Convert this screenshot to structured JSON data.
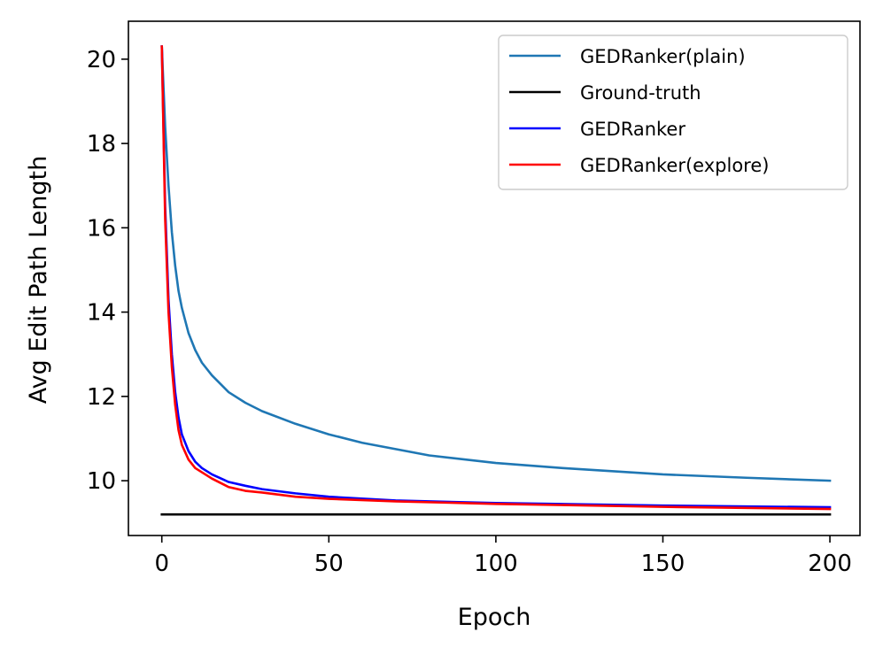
{
  "chart_data": {
    "type": "line",
    "xlabel": "Epoch",
    "ylabel": "Avg Edit Path Length",
    "xlim": [
      -10,
      209
    ],
    "ylim": [
      8.7,
      20.9
    ],
    "xticks": [
      0,
      50,
      100,
      150,
      200
    ],
    "yticks": [
      10,
      12,
      14,
      16,
      18,
      20
    ],
    "grid": false,
    "legend_position": "top-right",
    "series": [
      {
        "name": "GEDRanker(plain)",
        "color": "#1f77b4",
        "x": [
          0,
          1,
          2,
          3,
          4,
          5,
          6,
          8,
          10,
          12,
          15,
          20,
          25,
          30,
          40,
          50,
          60,
          70,
          80,
          100,
          120,
          150,
          175,
          200
        ],
        "y": [
          20.3,
          18.4,
          17.0,
          15.9,
          15.1,
          14.5,
          14.1,
          13.5,
          13.1,
          12.8,
          12.5,
          12.1,
          11.85,
          11.65,
          11.35,
          11.1,
          10.9,
          10.75,
          10.6,
          10.42,
          10.3,
          10.15,
          10.07,
          10.0
        ]
      },
      {
        "name": "Ground-truth",
        "color": "#000000",
        "x": [
          0,
          200
        ],
        "y": [
          9.2,
          9.2
        ]
      },
      {
        "name": "GEDRanker",
        "color": "#0000ff",
        "x": [
          0,
          1,
          2,
          3,
          4,
          5,
          6,
          8,
          10,
          12,
          15,
          20,
          25,
          30,
          40,
          50,
          70,
          100,
          150,
          200
        ],
        "y": [
          20.3,
          16.5,
          14.3,
          13.0,
          12.1,
          11.5,
          11.1,
          10.7,
          10.45,
          10.3,
          10.15,
          9.97,
          9.88,
          9.8,
          9.7,
          9.62,
          9.53,
          9.47,
          9.41,
          9.37
        ]
      },
      {
        "name": "GEDRanker(explore)",
        "color": "#ff0000",
        "x": [
          0,
          1,
          2,
          3,
          4,
          5,
          6,
          8,
          10,
          12,
          15,
          20,
          25,
          30,
          40,
          50,
          70,
          100,
          150,
          200
        ],
        "y": [
          20.3,
          16.2,
          14.0,
          12.7,
          11.8,
          11.2,
          10.85,
          10.5,
          10.3,
          10.2,
          10.05,
          9.85,
          9.76,
          9.72,
          9.62,
          9.57,
          9.51,
          9.45,
          9.38,
          9.33
        ]
      }
    ]
  }
}
